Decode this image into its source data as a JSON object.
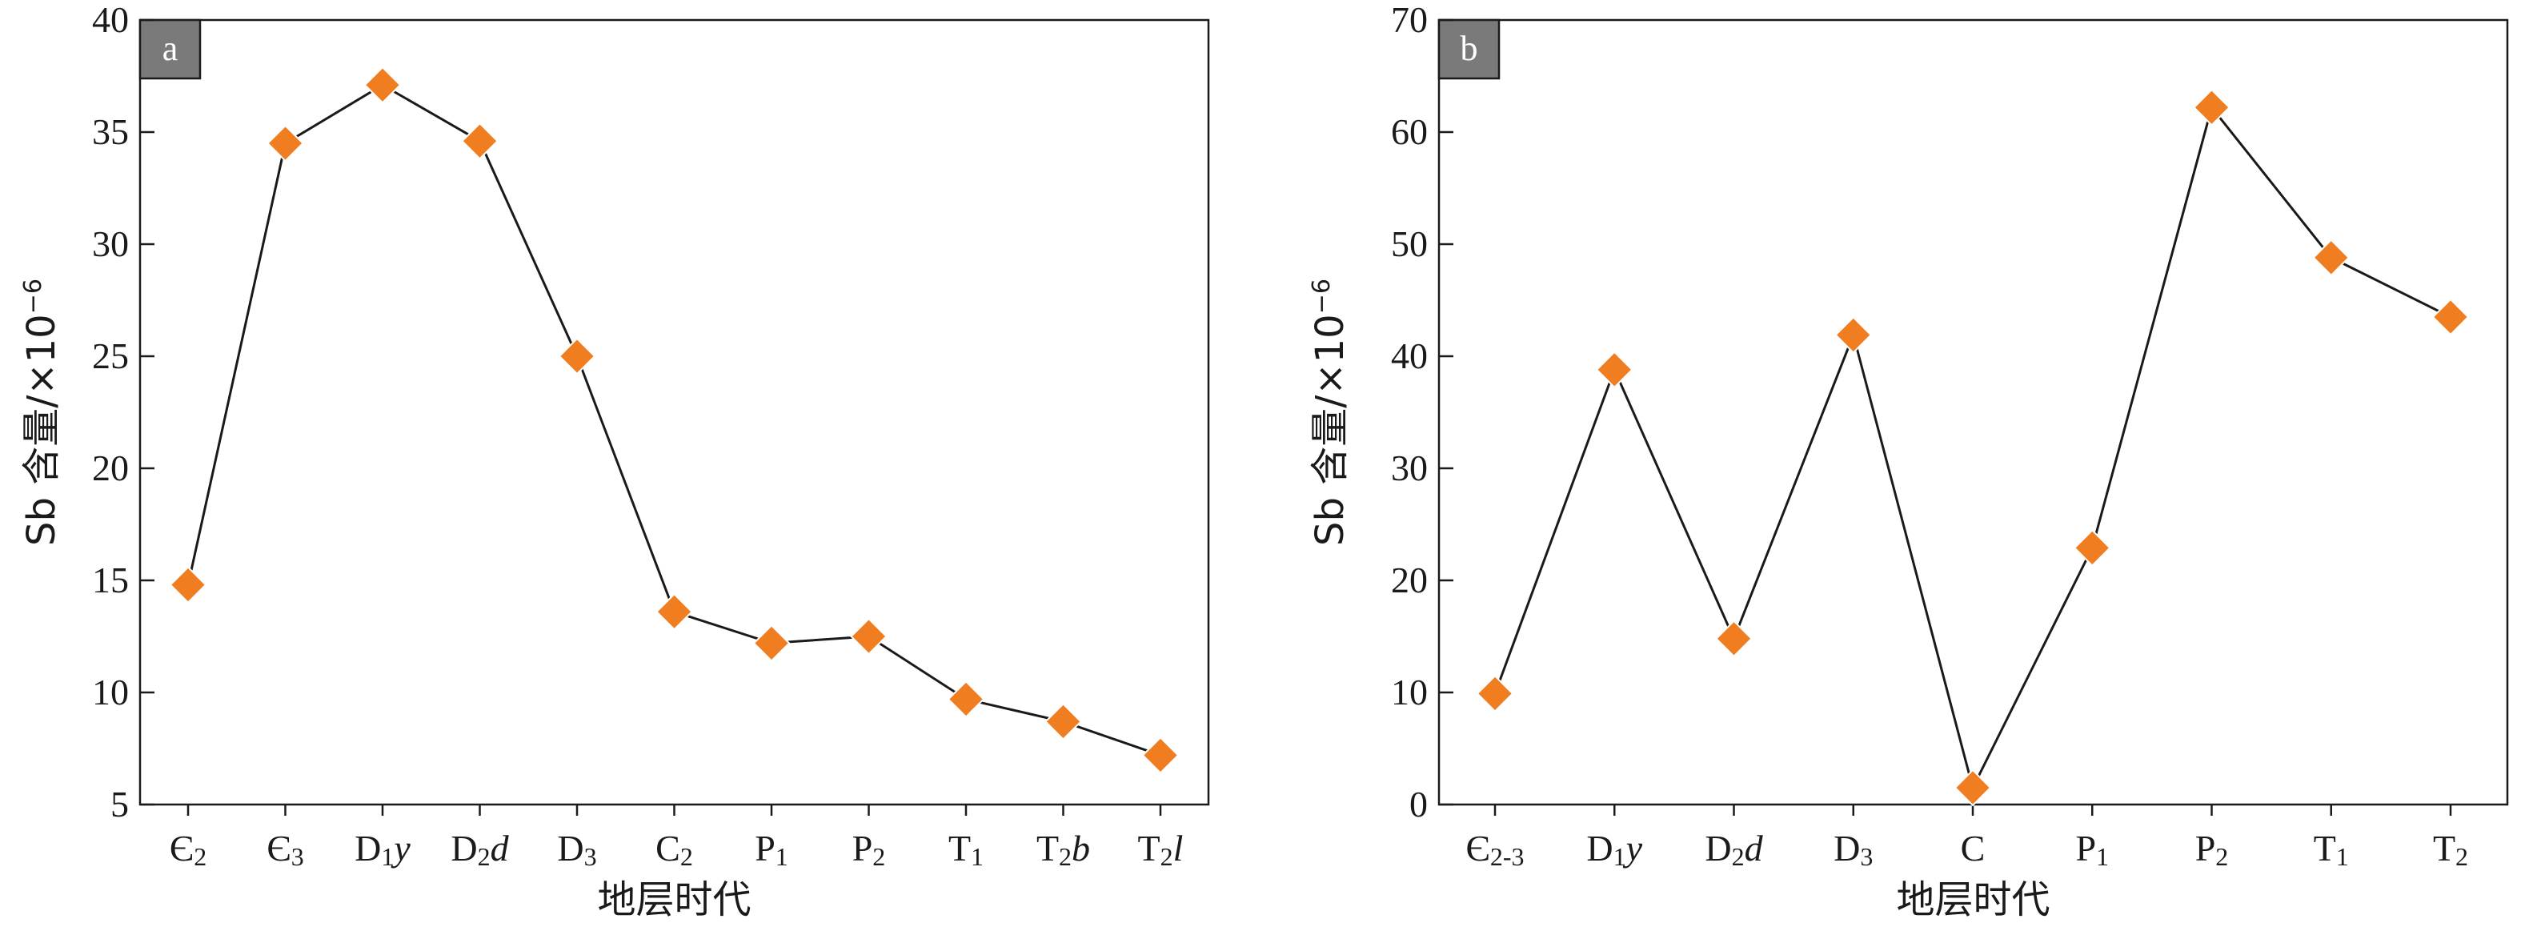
{
  "chart_data": [
    {
      "panel": "a",
      "type": "line",
      "categories": [
        "Є₂",
        "Є₃",
        "D₁y",
        "D₂d",
        "D₃",
        "C₂",
        "P₁",
        "P₂",
        "T₁",
        "T₂b",
        "T₂l"
      ],
      "values": [
        14.8,
        34.5,
        37.1,
        34.6,
        25.0,
        13.6,
        12.2,
        12.5,
        9.7,
        8.7,
        7.2
      ],
      "xlabel": "地层时代",
      "ylabel": "Sb 含量/×10⁻⁶",
      "ylim": [
        5,
        40
      ],
      "yticks": [
        5,
        10,
        15,
        20,
        25,
        30,
        35,
        40
      ],
      "grid": false,
      "marker": "diamond",
      "colors": {
        "marker": "#f07d20",
        "line": "#1a1a1a",
        "badge": "#7a7a7a"
      }
    },
    {
      "panel": "b",
      "type": "line",
      "categories": [
        "Є₂₋₃",
        "D₁y",
        "D₂d",
        "D₃",
        "C",
        "P₁",
        "P₂",
        "T₁",
        "T₂"
      ],
      "values": [
        9.9,
        38.8,
        14.8,
        41.9,
        1.5,
        22.9,
        62.2,
        48.8,
        43.5
      ],
      "xlabel": "地层时代",
      "ylabel": "Sb 含量/×10⁻⁶",
      "ylim": [
        0,
        70
      ],
      "yticks": [
        0,
        10,
        20,
        30,
        40,
        50,
        60,
        70
      ],
      "grid": false,
      "marker": "diamond",
      "colors": {
        "marker": "#f07d20",
        "line": "#1a1a1a",
        "badge": "#7a7a7a"
      }
    }
  ]
}
